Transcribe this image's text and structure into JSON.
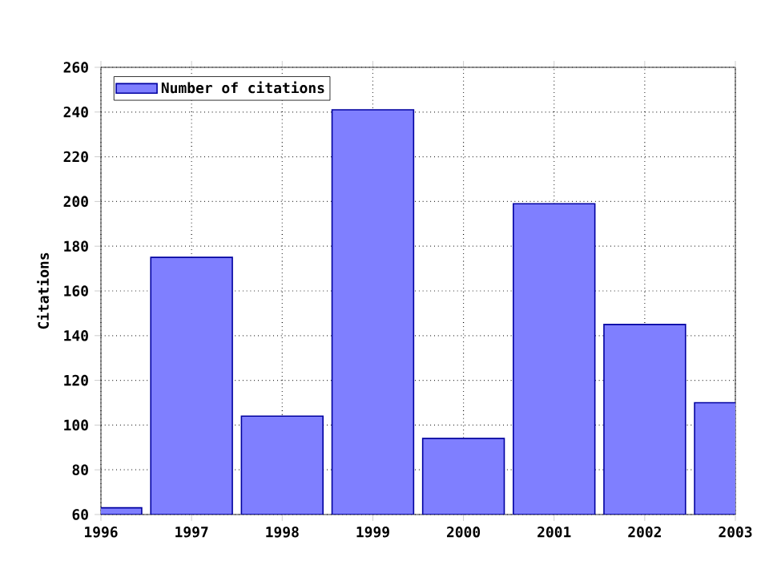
{
  "chart_data": {
    "type": "bar",
    "ylabel": "Citations",
    "x": [
      1996,
      1997,
      1998,
      1999,
      2000,
      2001,
      2002,
      2003
    ],
    "series": [
      {
        "name": "Number of citations",
        "color": "#7f7fff",
        "values": [
          63,
          175,
          104,
          241,
          94,
          199,
          145,
          110
        ]
      }
    ],
    "xlim": [
      1996,
      2003
    ],
    "xticks": [
      1996,
      1997,
      1998,
      1999,
      2000,
      2001,
      2002,
      2003
    ],
    "ylim": [
      60,
      260
    ],
    "yticks": [
      60,
      80,
      100,
      120,
      140,
      160,
      180,
      200,
      220,
      240,
      260
    ],
    "grid": true,
    "legend": "top left"
  }
}
